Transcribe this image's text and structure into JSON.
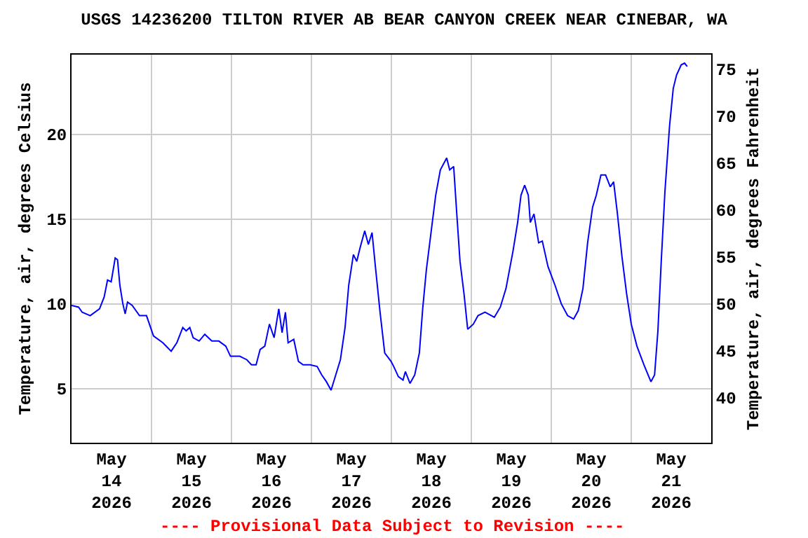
{
  "chart_data": {
    "type": "line",
    "title": "USGS 14236200 TILTON RIVER AB BEAR CANYON CREEK NEAR CINEBAR, WA",
    "ylabel": "Temperature, air, degrees Celsius",
    "y2label": "Temperature, air, degrees Fahrenheit",
    "annotations": [
      "---- Provisional Data Subject to Revision ----"
    ],
    "series": [
      {
        "color": "#0000ff",
        "x": [
          "2026-05-14T00:00",
          "2026-05-14T02:06",
          "2026-05-14T03:12",
          "2026-05-14T05:36",
          "2026-05-14T08:24",
          "2026-05-14T09:48",
          "2026-05-14T10:48",
          "2026-05-14T11:54",
          "2026-05-14T13:06",
          "2026-05-14T13:48",
          "2026-05-14T14:30",
          "2026-05-14T15:24",
          "2026-05-14T16:06",
          "2026-05-14T16:48",
          "2026-05-14T18:12",
          "2026-05-14T20:24",
          "2026-05-14T22:30",
          "2026-05-15T00:36",
          "2026-05-15T03:24",
          "2026-05-15T05:54",
          "2026-05-15T07:36",
          "2026-05-15T09:24",
          "2026-05-15T10:24",
          "2026-05-15T11:30",
          "2026-05-15T12:30",
          "2026-05-15T14:18",
          "2026-05-15T16:00",
          "2026-05-15T18:06",
          "2026-05-15T20:12",
          "2026-05-15T22:18",
          "2026-05-15T23:42",
          "2026-05-16T02:30",
          "2026-05-16T04:36",
          "2026-05-16T06:00",
          "2026-05-16T07:24",
          "2026-05-16T08:36",
          "2026-05-16T10:00",
          "2026-05-16T11:24",
          "2026-05-16T12:48",
          "2026-05-16T14:12",
          "2026-05-16T15:12",
          "2026-05-16T16:12",
          "2026-05-16T17:00",
          "2026-05-16T18:42",
          "2026-05-16T20:06",
          "2026-05-16T21:30",
          "2026-05-16T23:36",
          "2026-05-17T01:42",
          "2026-05-17T03:06",
          "2026-05-17T04:30",
          "2026-05-17T05:54",
          "2026-05-17T07:18",
          "2026-05-17T08:42",
          "2026-05-17T10:06",
          "2026-05-17T11:12",
          "2026-05-17T12:36",
          "2026-05-17T13:36",
          "2026-05-17T14:36",
          "2026-05-17T16:00",
          "2026-05-17T17:06",
          "2026-05-17T18:12",
          "2026-05-17T19:12",
          "2026-05-17T20:36",
          "2026-05-17T22:00",
          "2026-05-17T23:54",
          "2026-05-18T00:42",
          "2026-05-18T02:06",
          "2026-05-18T03:30",
          "2026-05-18T04:12",
          "2026-05-18T05:36",
          "2026-05-18T07:00",
          "2026-05-18T08:24",
          "2026-05-18T09:24",
          "2026-05-18T10:30",
          "2026-05-18T11:54",
          "2026-05-18T13:18",
          "2026-05-18T14:42",
          "2026-05-18T16:36",
          "2026-05-18T17:30",
          "2026-05-18T18:42",
          "2026-05-18T19:36",
          "2026-05-18T20:36",
          "2026-05-18T21:48",
          "2026-05-18T22:54",
          "2026-05-19T00:36",
          "2026-05-19T02:00",
          "2026-05-19T04:06",
          "2026-05-19T06:54",
          "2026-05-19T08:42",
          "2026-05-19T10:24",
          "2026-05-19T12:30",
          "2026-05-19T13:54",
          "2026-05-19T14:54",
          "2026-05-19T16:00",
          "2026-05-19T17:06",
          "2026-05-19T17:42",
          "2026-05-19T18:48",
          "2026-05-19T20:12",
          "2026-05-19T21:18",
          "2026-05-19T23:00",
          "2026-05-20T01:06",
          "2026-05-20T03:00",
          "2026-05-20T04:54",
          "2026-05-20T06:42",
          "2026-05-20T08:06",
          "2026-05-20T09:30",
          "2026-05-20T10:54",
          "2026-05-20T12:24",
          "2026-05-20T13:30",
          "2026-05-20T14:54",
          "2026-05-20T16:18",
          "2026-05-20T17:42",
          "2026-05-20T18:42",
          "2026-05-20T19:48",
          "2026-05-20T21:12",
          "2026-05-20T22:36",
          "2026-05-21T00:00",
          "2026-05-21T01:42",
          "2026-05-21T03:48",
          "2026-05-21T05:54",
          "2026-05-21T07:00",
          "2026-05-21T08:00",
          "2026-05-21T09:00",
          "2026-05-21T10:06",
          "2026-05-21T11:30",
          "2026-05-21T12:36",
          "2026-05-21T13:36",
          "2026-05-21T15:00",
          "2026-05-21T16:00",
          "2026-05-21T16:48"
        ],
        "values": [
          9.9,
          9.8,
          9.5,
          9.3,
          9.7,
          10.4,
          11.4,
          11.3,
          12.7,
          12.6,
          11.1,
          10.0,
          9.4,
          10.1,
          9.9,
          9.3,
          9.3,
          8.1,
          7.7,
          7.2,
          7.7,
          8.6,
          8.4,
          8.6,
          8.0,
          7.8,
          8.2,
          7.8,
          7.8,
          7.5,
          6.9,
          6.9,
          6.7,
          6.4,
          6.4,
          7.3,
          7.5,
          8.8,
          8.0,
          9.7,
          8.3,
          9.5,
          7.7,
          7.9,
          6.6,
          6.4,
          6.4,
          6.3,
          5.8,
          5.4,
          4.9,
          5.8,
          6.7,
          8.6,
          11.1,
          12.9,
          12.5,
          13.3,
          14.3,
          13.5,
          14.2,
          12.2,
          9.5,
          7.1,
          6.6,
          6.3,
          5.7,
          5.5,
          6.0,
          5.3,
          5.8,
          7.1,
          9.7,
          12.0,
          14.2,
          16.4,
          17.9,
          18.6,
          17.9,
          18.1,
          15.4,
          12.5,
          10.6,
          8.5,
          8.8,
          9.3,
          9.5,
          9.2,
          9.8,
          10.9,
          13.1,
          14.8,
          16.4,
          17.0,
          16.4,
          14.8,
          15.3,
          13.6,
          13.7,
          12.2,
          11.1,
          10.0,
          9.3,
          9.1,
          9.6,
          10.9,
          13.6,
          15.7,
          16.4,
          17.6,
          17.6,
          16.9,
          17.2,
          15.4,
          12.8,
          10.6,
          8.8,
          7.5,
          6.4,
          5.4,
          5.8,
          8.4,
          12.5,
          16.6,
          20.5,
          22.7,
          23.5,
          24.1,
          24.2,
          24.0
        ]
      }
    ],
    "xlim": [
      "2026-05-14",
      "2026-05-22"
    ],
    "xticks": [
      {
        "value": "2026-05-14T12:00",
        "label": "May\n14\n2026"
      },
      {
        "value": "2026-05-15T12:00",
        "label": "May\n15\n2026"
      },
      {
        "value": "2026-05-16T12:00",
        "label": "May\n16\n2026"
      },
      {
        "value": "2026-05-17T12:00",
        "label": "May\n17\n2026"
      },
      {
        "value": "2026-05-18T12:00",
        "label": "May\n18\n2026"
      },
      {
        "value": "2026-05-19T12:00",
        "label": "May\n19\n2026"
      },
      {
        "value": "2026-05-20T12:00",
        "label": "May\n20\n2026"
      },
      {
        "value": "2026-05-21T12:00",
        "label": "May\n21\n2026"
      },
      {
        "value": "2026-05-15",
        "label": null
      },
      {
        "value": "2026-05-16",
        "label": null
      },
      {
        "value": "2026-05-17",
        "label": null
      },
      {
        "value": "2026-05-18",
        "label": null
      },
      {
        "value": "2026-05-19",
        "label": null
      },
      {
        "value": "2026-05-20",
        "label": null
      },
      {
        "value": "2026-05-21",
        "label": null
      }
    ],
    "ylim": [
      1.8,
      24.7
    ],
    "yticks": [
      5,
      10,
      15,
      20
    ],
    "y2lim": [
      35.2,
      76.5
    ],
    "y2ticks": [
      40,
      45,
      50,
      55,
      60,
      65,
      70,
      75
    ],
    "grid": true,
    "marker": "none",
    "line_style": "solid"
  }
}
